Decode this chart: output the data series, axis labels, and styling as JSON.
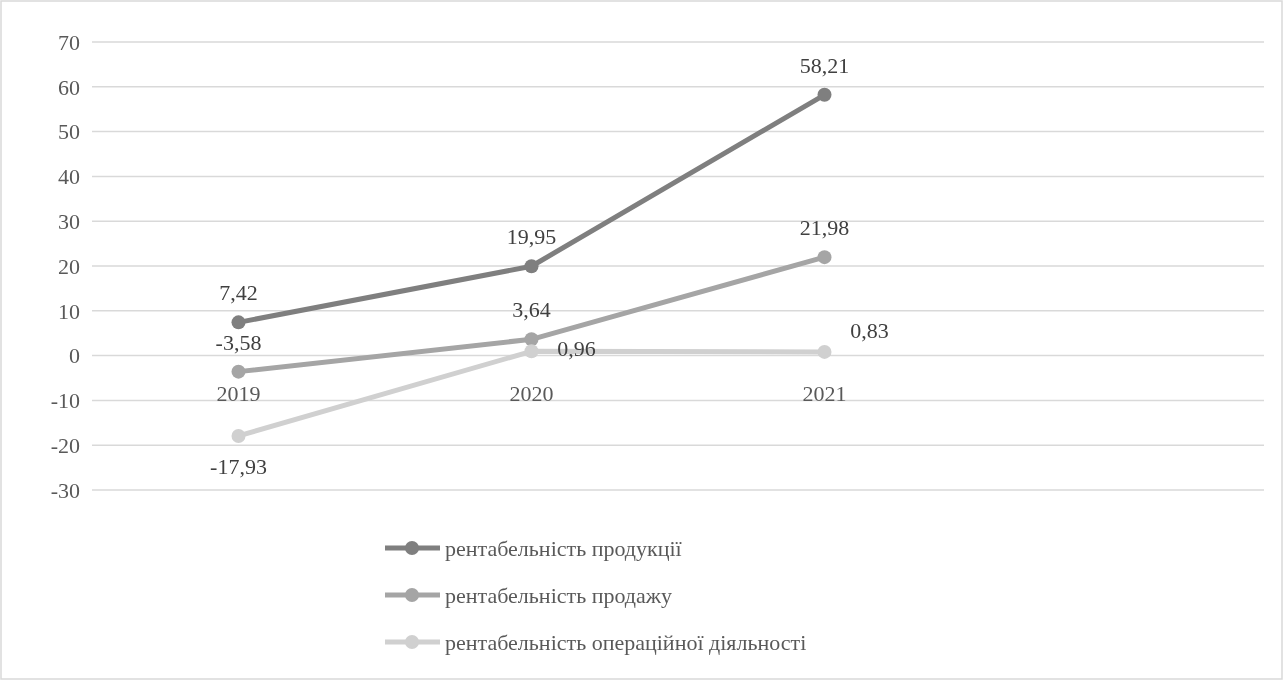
{
  "chart_data": {
    "type": "line",
    "categories": [
      "2019",
      "2020",
      "2021",
      null
    ],
    "series": [
      {
        "name": "рентабельність продукції",
        "color": "#7f7f7f",
        "values": [
          7.42,
          19.95,
          58.21,
          null
        ],
        "value_labels": [
          "7,42",
          "19,95",
          "58,21",
          null
        ]
      },
      {
        "name": "рентабельність продажу",
        "color": "#a5a5a5",
        "values": [
          -3.58,
          3.64,
          21.98,
          null
        ],
        "value_labels": [
          "-3,58",
          "3,64",
          "21,98",
          null
        ]
      },
      {
        "name": "рентабельність операційної діяльності",
        "color": "#d0d0d0",
        "values": [
          -17.93,
          0.96,
          0.83,
          null
        ],
        "value_labels": [
          "-17,93",
          "0,96",
          "0,83",
          null
        ]
      }
    ],
    "ylim": [
      -30,
      70
    ],
    "yticks": [
      -30,
      -20,
      -10,
      0,
      10,
      20,
      30,
      40,
      50,
      60,
      70
    ],
    "grid": "y",
    "legend": "bottom",
    "marker": "circle",
    "line_style": "solid"
  }
}
